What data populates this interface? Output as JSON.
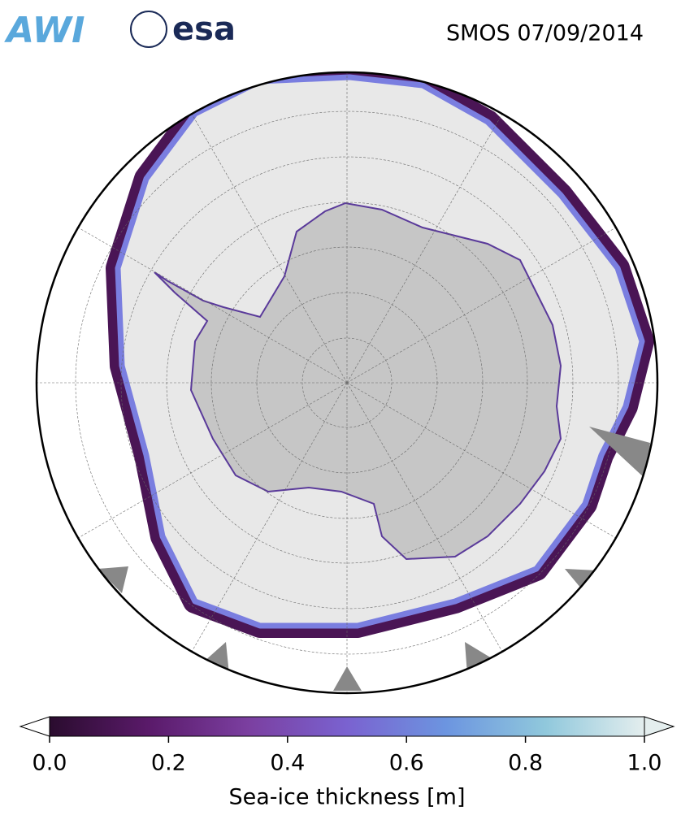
{
  "header": {
    "logos": [
      "AWI",
      "esa"
    ],
    "title": "SMOS 07/09/2014"
  },
  "colorbar": {
    "label": "Sea-ice thickness [m]",
    "lim": [
      0,
      1
    ],
    "ticks": [
      {
        "value": 0,
        "label": "0.0"
      },
      0.2,
      0.4,
      0.6,
      0.8,
      {
        "value": 1,
        "label": "1.0"
      }
    ],
    "colors": [
      "#2a0c2e",
      "#5a1a6a",
      "#7b3fa0",
      "#7a62d0",
      "#6c95e0",
      "#90c8dc",
      "#e4eeee"
    ]
  }
}
